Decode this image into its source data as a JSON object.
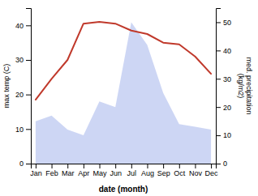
{
  "chart_data": {
    "type": "line",
    "categories": [
      "Jan",
      "Feb",
      "Mar",
      "Apr",
      "May",
      "Jun",
      "Jul",
      "Aug",
      "Sep",
      "Oct",
      "Nov",
      "Dec"
    ],
    "series": [
      {
        "type": "area",
        "axis": "y2",
        "color": "#b8c4f0",
        "values": [
          15.0,
          17.0,
          12.0,
          10.0,
          22.0,
          20.0,
          50.0,
          42.0,
          25.0,
          14.0,
          13.0,
          12.0
        ]
      },
      {
        "type": "line",
        "color": "#c0392b",
        "values": [
          18.5,
          24.5,
          30.0,
          40.5,
          41.0,
          40.5,
          38.5,
          37.5,
          35.0,
          34.5,
          31.0,
          26.0
        ]
      }
    ],
    "xlabel": "date (month)",
    "ylabel": "max temp (C)",
    "y2label": "med. precipitation\n(kg/m2)",
    "ylim": [
      0,
      45
    ],
    "yticks": [
      0,
      10,
      20,
      30,
      40
    ],
    "y2lim": [
      0,
      55
    ],
    "y2ticks": [
      0,
      10,
      20,
      30,
      40,
      50
    ]
  }
}
